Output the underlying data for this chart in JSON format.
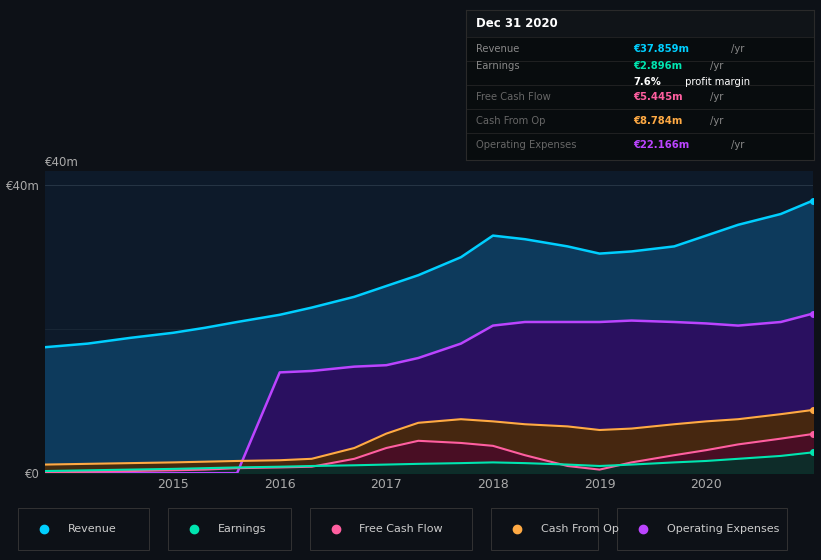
{
  "bg_color": "#0d1117",
  "chart_bg": "#0d1a2a",
  "ylim": [
    0,
    42000000
  ],
  "ytick_labels": [
    "€0",
    "€40m"
  ],
  "years": [
    2013.8,
    2014.2,
    2014.6,
    2015.0,
    2015.3,
    2015.6,
    2016.0,
    2016.3,
    2016.7,
    2017.0,
    2017.3,
    2017.7,
    2018.0,
    2018.3,
    2018.7,
    2019.0,
    2019.3,
    2019.7,
    2020.0,
    2020.3,
    2020.7,
    2021.0
  ],
  "revenue": [
    17500000,
    18000000,
    18800000,
    19500000,
    20200000,
    21000000,
    22000000,
    23000000,
    24500000,
    26000000,
    27500000,
    30000000,
    33000000,
    32500000,
    31500000,
    30500000,
    30800000,
    31500000,
    33000000,
    34500000,
    36000000,
    37859000
  ],
  "earnings": [
    300000,
    400000,
    500000,
    600000,
    700000,
    800000,
    900000,
    1000000,
    1100000,
    1200000,
    1300000,
    1400000,
    1500000,
    1400000,
    1200000,
    1000000,
    1200000,
    1500000,
    1700000,
    2000000,
    2400000,
    2896000
  ],
  "free_cash": [
    100000,
    200000,
    300000,
    400000,
    500000,
    700000,
    800000,
    900000,
    2000000,
    3500000,
    4500000,
    4200000,
    3800000,
    2500000,
    1000000,
    500000,
    1500000,
    2500000,
    3200000,
    4000000,
    4800000,
    5445000
  ],
  "cash_from_op": [
    1200000,
    1300000,
    1400000,
    1500000,
    1600000,
    1700000,
    1800000,
    2000000,
    3500000,
    5500000,
    7000000,
    7500000,
    7200000,
    6800000,
    6500000,
    6000000,
    6200000,
    6800000,
    7200000,
    7500000,
    8200000,
    8784000
  ],
  "op_expenses": [
    0,
    0,
    0,
    0,
    0,
    0,
    14000000,
    14200000,
    14800000,
    15000000,
    16000000,
    18000000,
    20500000,
    21000000,
    21000000,
    21000000,
    21200000,
    21000000,
    20800000,
    20500000,
    21000000,
    22166000
  ],
  "revenue_color": "#00cfff",
  "earnings_color": "#00e5b0",
  "free_cash_color": "#ff5fa0",
  "cash_from_op_color": "#ffaa44",
  "op_expenses_color": "#bb44ff",
  "revenue_fill": "#0d3a5c",
  "op_expenses_fill": "#2a1060",
  "cash_from_op_fill": "#4a2a08",
  "free_cash_fill": "#4a0a28",
  "earnings_fill": "#08302a",
  "legend_items": [
    {
      "label": "Revenue",
      "color": "#00cfff"
    },
    {
      "label": "Earnings",
      "color": "#00e5b0"
    },
    {
      "label": "Free Cash Flow",
      "color": "#ff5fa0"
    },
    {
      "label": "Cash From Op",
      "color": "#ffaa44"
    },
    {
      "label": "Operating Expenses",
      "color": "#bb44ff"
    }
  ],
  "info_rows": [
    {
      "label": "Revenue",
      "value": "€37.859m",
      "value_color": "#00cfff",
      "yr": true
    },
    {
      "label": "Earnings",
      "value": "€2.896m",
      "value_color": "#00e5b0",
      "yr": true
    },
    {
      "label": "",
      "value": "7.6%",
      "value_color": "#ffffff",
      "yr": false,
      "suffix": " profit margin"
    },
    {
      "label": "Free Cash Flow",
      "value": "€5.445m",
      "value_color": "#ff5fa0",
      "yr": true
    },
    {
      "label": "Cash From Op",
      "value": "€8.784m",
      "value_color": "#ffaa44",
      "yr": true
    },
    {
      "label": "Operating Expenses",
      "value": "€22.166m",
      "value_color": "#bb44ff",
      "yr": true
    }
  ]
}
